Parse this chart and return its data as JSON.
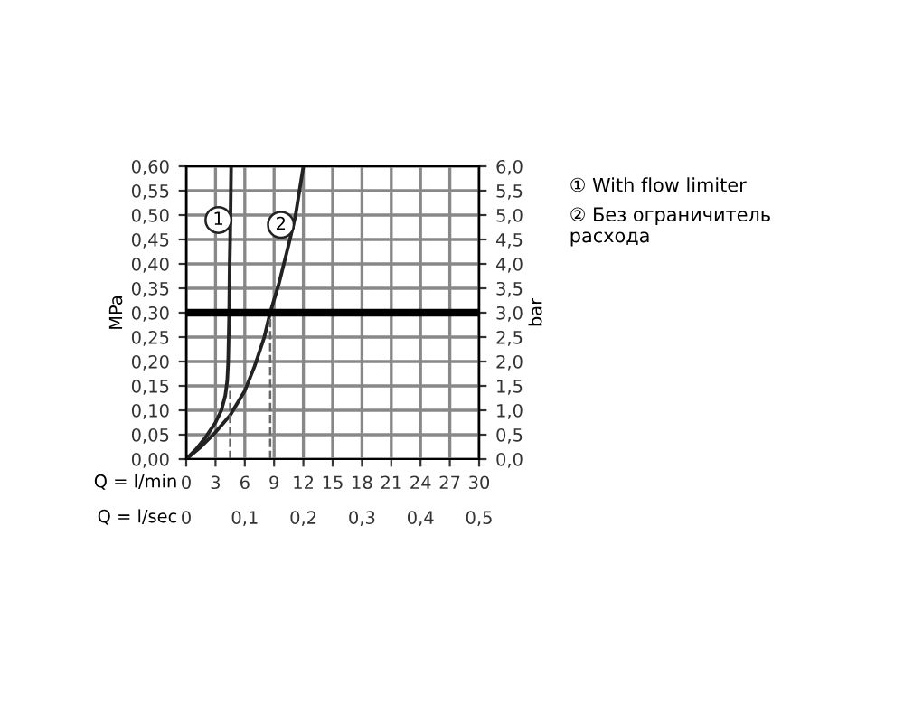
{
  "chart_data": {
    "type": "line",
    "ylabel": "MPa",
    "y2label": "bar",
    "xlabel": "Q = l/min",
    "x2label": "Q = l/sec",
    "xlim": [
      0,
      30
    ],
    "xticks": [
      0,
      3,
      6,
      9,
      12,
      15,
      18,
      21,
      24,
      27,
      30
    ],
    "ylim": [
      0,
      0.6
    ],
    "yticks": [
      {
        "value": 0,
        "label": "0,00"
      },
      {
        "value": 0.05,
        "label": "0,05"
      },
      {
        "value": 0.1,
        "label": "0,10"
      },
      {
        "value": 0.15,
        "label": "0,15"
      },
      {
        "value": 0.2,
        "label": "0,20"
      },
      {
        "value": 0.25,
        "label": "0,25"
      },
      {
        "value": 0.3,
        "label": "0,30"
      },
      {
        "value": 0.35,
        "label": "0,35"
      },
      {
        "value": 0.4,
        "label": "0,40"
      },
      {
        "value": 0.45,
        "label": "0,45"
      },
      {
        "value": 0.5,
        "label": "0,50"
      },
      {
        "value": 0.55,
        "label": "0,55"
      },
      {
        "value": 0.6,
        "label": "0,60"
      }
    ],
    "y2lim": [
      0,
      6
    ],
    "y2ticks": [
      {
        "value": 0,
        "label": "0,0"
      },
      {
        "value": 0.5,
        "label": "0,5"
      },
      {
        "value": 1,
        "label": "1,0"
      },
      {
        "value": 1.5,
        "label": "1,5"
      },
      {
        "value": 2,
        "label": "2,0"
      },
      {
        "value": 2.5,
        "label": "2,5"
      },
      {
        "value": 3,
        "label": "3,0"
      },
      {
        "value": 3.5,
        "label": "3,5"
      },
      {
        "value": 4,
        "label": "4,0"
      },
      {
        "value": 4.5,
        "label": "4,5"
      },
      {
        "value": 5,
        "label": "5,0"
      },
      {
        "value": 5.5,
        "label": "5,5"
      },
      {
        "value": 6,
        "label": "6,0"
      }
    ],
    "x2lim": [
      0,
      0.5
    ],
    "x2ticks": [
      0,
      {
        "value": 0.1,
        "label": "0,1"
      },
      {
        "value": 0.2,
        "label": "0,2"
      },
      {
        "value": 0.3,
        "label": "0,3"
      },
      {
        "value": 0.4,
        "label": "0,4"
      },
      {
        "value": 0.5,
        "label": "0,5"
      }
    ],
    "grid": true,
    "legend": "right",
    "marker": "none",
    "series": [
      {
        "name": "① With flow limiter",
        "color": "#222222",
        "x": [
          0,
          1,
          2,
          3,
          3.6,
          4,
          4.2,
          4.3,
          4.4,
          4.45,
          4.5,
          4.55,
          4.6
        ],
        "values": [
          0,
          0.02,
          0.045,
          0.075,
          0.1,
          0.13,
          0.16,
          0.2,
          0.3,
          0.4,
          0.45,
          0.52,
          0.6
        ]
      },
      {
        "name": "② Без ограничитель\nрасхода",
        "color": "#222222",
        "x": [
          0,
          1.5,
          3,
          4.5,
          6,
          7,
          8,
          8.6,
          9.5,
          10.5,
          11.2,
          12
        ],
        "values": [
          0,
          0.025,
          0.055,
          0.09,
          0.14,
          0.19,
          0.25,
          0.3,
          0.36,
          0.44,
          0.5,
          0.6
        ]
      },
      {
        "color": "#666666",
        "line_style": "dashed",
        "x": [
          4.5,
          4.5
        ],
        "values": [
          0,
          0.15
        ]
      },
      {
        "color": "#666666",
        "line_style": "dashed",
        "x": [
          8.6,
          8.6
        ],
        "values": [
          0,
          0.3
        ]
      }
    ],
    "ref_lines": [
      {
        "axis": "y",
        "value": 0.3,
        "color": "#000000"
      }
    ],
    "annotations": [
      {
        "text": "1",
        "x": 3.3,
        "y": 0.49
      },
      {
        "text": "2",
        "x": 9.7,
        "y": 0.48
      }
    ]
  }
}
